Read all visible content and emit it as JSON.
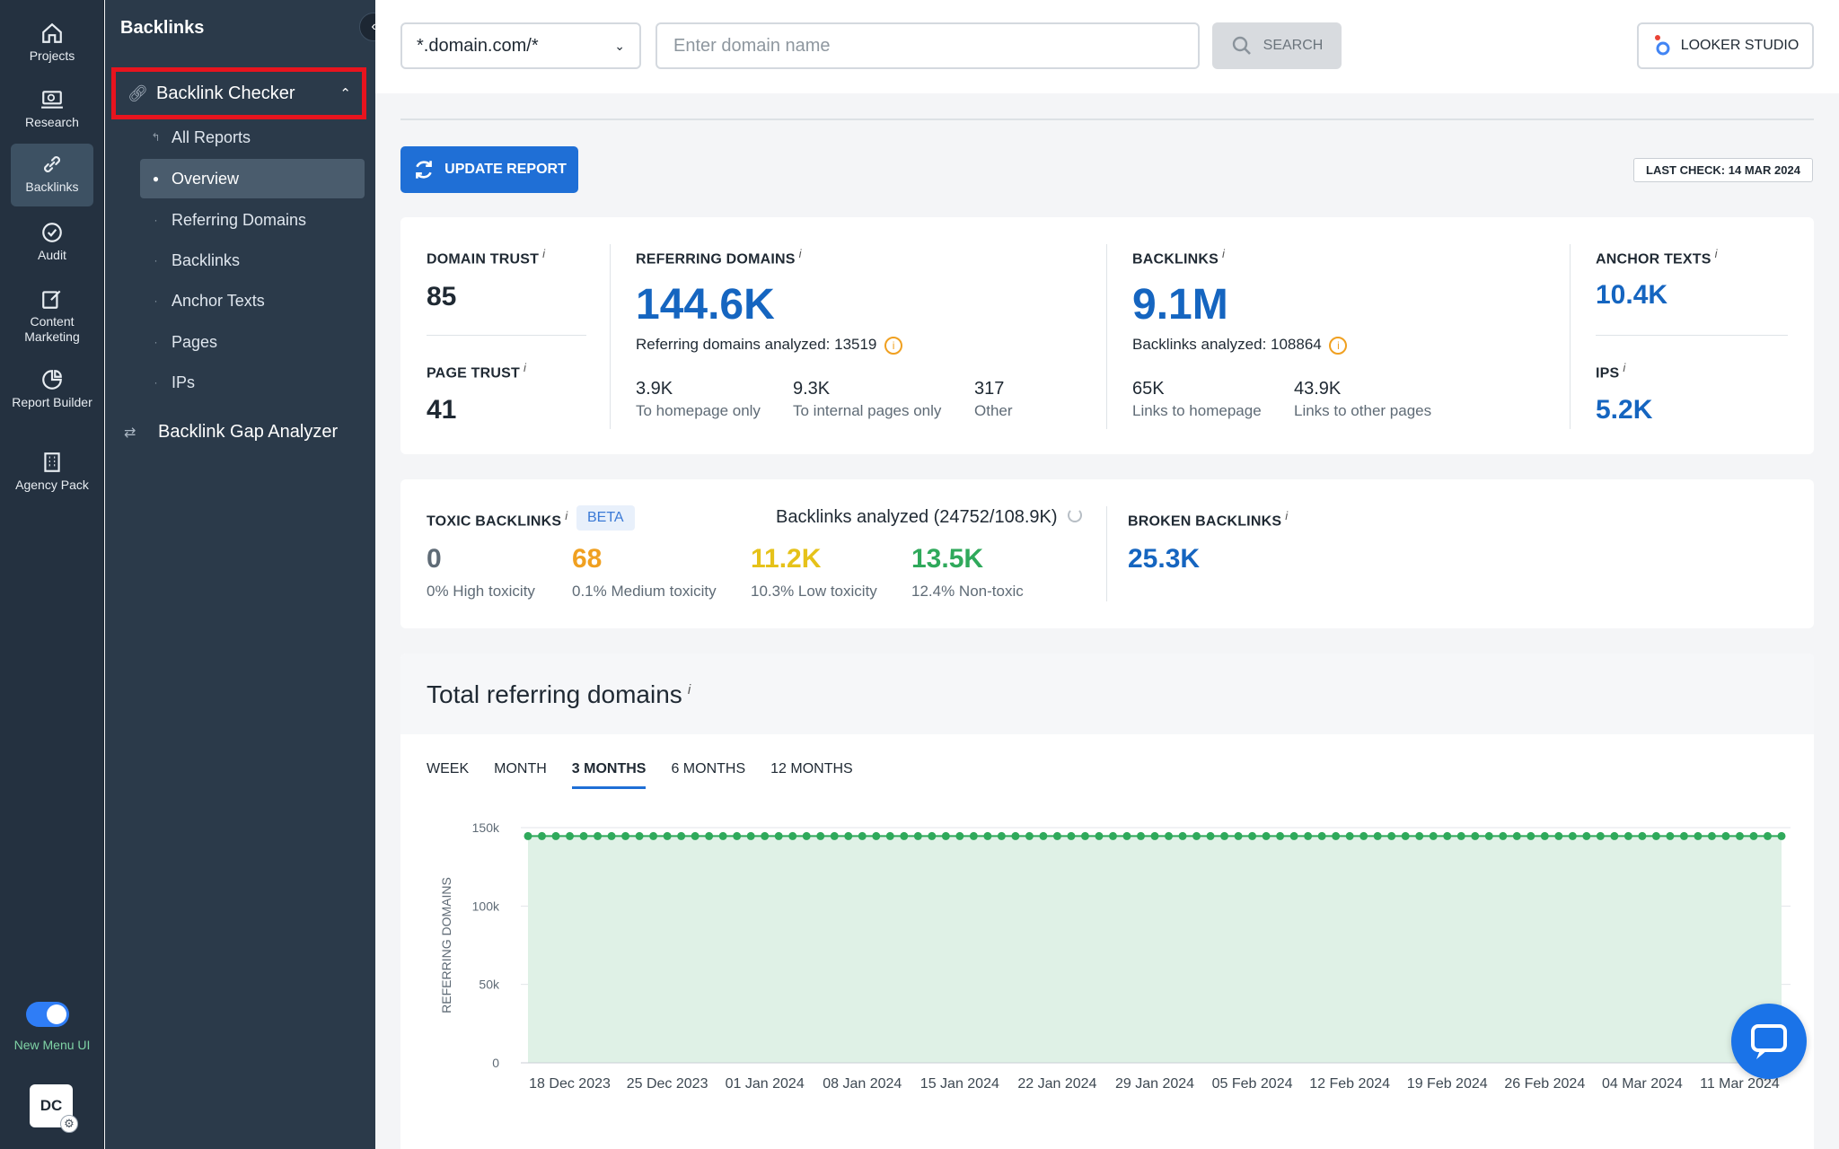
{
  "rail": {
    "items": [
      {
        "label": "Projects"
      },
      {
        "label": "Research"
      },
      {
        "label": "Backlinks"
      },
      {
        "label": "Audit"
      },
      {
        "label": "Content Marketing"
      },
      {
        "label": "Report Builder"
      },
      {
        "label": "Agency Pack"
      }
    ],
    "toggle_label": "New Menu UI",
    "avatar": "DC"
  },
  "sidebar": {
    "title": "Backlinks",
    "section": "Backlink Checker",
    "items": [
      {
        "label": "All Reports"
      },
      {
        "label": "Overview"
      },
      {
        "label": "Referring Domains"
      },
      {
        "label": "Backlinks"
      },
      {
        "label": "Anchor Texts"
      },
      {
        "label": "Pages"
      },
      {
        "label": "IPs"
      }
    ],
    "gap_analyzer": "Backlink Gap Analyzer"
  },
  "topbar": {
    "mode": "*.domain.com/*",
    "domain_placeholder": "Enter domain name",
    "search_label": "SEARCH",
    "looker_label": "LOOKER STUDIO"
  },
  "actions": {
    "update_label": "UPDATE REPORT",
    "last_check": "LAST CHECK: 14 MAR 2024"
  },
  "metrics": {
    "domain_trust": {
      "label": "DOMAIN TRUST",
      "value": "85"
    },
    "page_trust": {
      "label": "PAGE TRUST",
      "value": "41"
    },
    "referring_domains": {
      "label": "REFERRING DOMAINS",
      "value": "144.6K",
      "analyzed": "Referring domains analyzed: 13519",
      "breakdown": [
        {
          "value": "3.9K",
          "label": "To homepage only"
        },
        {
          "value": "9.3K",
          "label": "To internal pages only"
        },
        {
          "value": "317",
          "label": "Other"
        }
      ]
    },
    "backlinks": {
      "label": "BACKLINKS",
      "value": "9.1M",
      "analyzed": "Backlinks analyzed: 108864",
      "breakdown": [
        {
          "value": "65K",
          "label": "Links to homepage"
        },
        {
          "value": "43.9K",
          "label": "Links to other pages"
        }
      ]
    },
    "anchor_texts": {
      "label": "ANCHOR TEXTS",
      "value": "10.4K"
    },
    "ips": {
      "label": "IPS",
      "value": "5.2K"
    },
    "info_mark": "i"
  },
  "toxic": {
    "label": "TOXIC BACKLINKS",
    "badge": "BETA",
    "analyzed": "Backlinks analyzed (24752/108.9K)",
    "items": [
      {
        "value": "0",
        "label": "0% High toxicity",
        "color": "#5f6b76"
      },
      {
        "value": "68",
        "label": "0.1% Medium toxicity",
        "color": "#f0a020"
      },
      {
        "value": "11.2K",
        "label": "10.3% Low toxicity",
        "color": "#e6c21a"
      },
      {
        "value": "13.5K",
        "label": "12.4% Non-toxic",
        "color": "#2fa95b"
      }
    ],
    "broken_label": "BROKEN BACKLINKS",
    "broken_value": "25.3K"
  },
  "chart_section": {
    "title": "Total referring domains",
    "tabs": [
      {
        "label": "WEEK",
        "active": false
      },
      {
        "label": "MONTH",
        "active": false
      },
      {
        "label": "3 MONTHS",
        "active": true
      },
      {
        "label": "6 MONTHS",
        "active": false
      },
      {
        "label": "12 MONTHS",
        "active": false
      }
    ]
  },
  "colors": {
    "accent": "#1f6fd6",
    "metric_blue": "#1565c0",
    "chart_line": "#2fa95b",
    "chart_fill": "#dff1e6",
    "highlight": "#e8141e"
  },
  "chart_data": {
    "type": "area",
    "title": "",
    "xlabel": "",
    "ylabel": "REFERRING DOMAINS",
    "ylim": [
      0,
      150000
    ],
    "yticks": [
      0,
      50000,
      100000,
      150000
    ],
    "ytick_labels": [
      "0",
      "50k",
      "100k",
      "150k"
    ],
    "xtick_labels": [
      "18 Dec 2023",
      "25 Dec 2023",
      "01 Jan 2024",
      "08 Jan 2024",
      "15 Jan 2024",
      "22 Jan 2024",
      "29 Jan 2024",
      "05 Feb 2024",
      "12 Feb 2024",
      "19 Feb 2024",
      "26 Feb 2024",
      "04 Mar 2024",
      "11 Mar 2024"
    ],
    "x_start": "2023-12-15",
    "x_end": "2024-03-14",
    "series": [
      {
        "values": [
          144600,
          144600,
          144600,
          144600,
          144600,
          144600,
          144600,
          144600,
          144600,
          144600,
          144600,
          144600,
          144600,
          144600,
          144600,
          144600,
          144600,
          144600,
          144600,
          144600,
          144600,
          144600,
          144600,
          144600,
          144600,
          144600,
          144600,
          144600,
          144600,
          144600,
          144600,
          144600,
          144600,
          144600,
          144600,
          144600,
          144600,
          144600,
          144600,
          144600,
          144600,
          144600,
          144600,
          144600,
          144600,
          144600,
          144600,
          144600,
          144600,
          144600,
          144600,
          144600,
          144600,
          144600,
          144600,
          144600,
          144600,
          144600,
          144600,
          144600,
          144600,
          144600,
          144600,
          144600,
          144600,
          144600,
          144600,
          144600,
          144600,
          144600,
          144600,
          144600,
          144600,
          144600,
          144600,
          144600,
          144600,
          144600,
          144600,
          144600,
          144600,
          144600,
          144600,
          144600,
          144600,
          144600,
          144600,
          144600,
          144600,
          144600,
          144600
        ]
      }
    ],
    "grid": true
  }
}
